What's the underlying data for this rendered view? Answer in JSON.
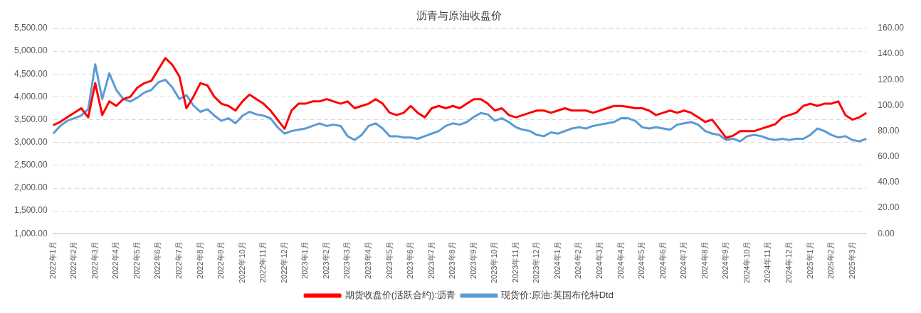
{
  "chart_data": {
    "type": "line",
    "title": "沥青与原油收盘价",
    "categories": [
      "2022年1月",
      null,
      null,
      "2022年2月",
      null,
      null,
      "2022年3月",
      null,
      null,
      "2022年4月",
      null,
      null,
      "2022年5月",
      null,
      null,
      "2022年6月",
      null,
      null,
      "2022年7月",
      null,
      null,
      "2022年8月",
      null,
      null,
      "2022年9月",
      null,
      null,
      "2022年10月",
      null,
      null,
      "2022年11月",
      null,
      null,
      "2022年12月",
      null,
      null,
      "2023年1月",
      null,
      null,
      "2023年2月",
      null,
      null,
      "2023年3月",
      null,
      null,
      "2023年4月",
      null,
      null,
      "2023年5月",
      null,
      null,
      "2023年6月",
      null,
      null,
      "2023年7月",
      null,
      null,
      "2023年8月",
      null,
      null,
      "2023年9月",
      null,
      null,
      "2023年10月",
      null,
      null,
      "2023年11月",
      null,
      null,
      "2023年12月",
      null,
      null,
      "2024年1月",
      null,
      null,
      "2024年2月",
      null,
      null,
      "2024年3月",
      null,
      null,
      "2024年4月",
      null,
      null,
      "2024年5月",
      null,
      null,
      "2024年6月",
      null,
      null,
      "2024年7月",
      null,
      null,
      "2024年8月",
      null,
      null,
      "2024年9月",
      null,
      null,
      "2024年10月",
      null,
      null,
      "2024年11月",
      null,
      null,
      "2024年12月",
      null,
      null,
      "2025年1月",
      null,
      null,
      "2025年2月",
      null,
      null,
      "2025年3月",
      null,
      null
    ],
    "series": [
      {
        "name": "期货收盘价(活跃合约):沥青",
        "color": "#ff0000",
        "values": [
          3380,
          3450,
          3550,
          3650,
          3750,
          3550,
          4300,
          3600,
          3900,
          3800,
          3950,
          4000,
          4200,
          4300,
          4350,
          4600,
          4850,
          4700,
          4450,
          3750,
          4000,
          4300,
          4250,
          4000,
          3850,
          3800,
          3700,
          3900,
          4050,
          3950,
          3850,
          3700,
          3500,
          3300,
          3700,
          3850,
          3850,
          3900,
          3900,
          3950,
          3900,
          3850,
          3900,
          3750,
          3800,
          3850,
          3950,
          3850,
          3650,
          3600,
          3650,
          3800,
          3650,
          3550,
          3750,
          3800,
          3750,
          3800,
          3750,
          3850,
          3950,
          3950,
          3850,
          3700,
          3750,
          3600,
          3550,
          3600,
          3650,
          3700,
          3700,
          3650,
          3700,
          3750,
          3700,
          3700,
          3700,
          3650,
          3700,
          3750,
          3800,
          3800,
          3780,
          3750,
          3750,
          3700,
          3600,
          3650,
          3700,
          3650,
          3700,
          3650,
          3550,
          3450,
          3500,
          3300,
          3100,
          3150,
          3250,
          3250,
          3250,
          3300,
          3350,
          3400,
          3550,
          3600,
          3650,
          3800,
          3850,
          3800,
          3850,
          3850,
          3900,
          3600,
          3500,
          3550,
          3650
        ]
      },
      {
        "name": "现货价:原油:英国布伦特Dtd",
        "color": "#5b9bd5",
        "axis": "y2",
        "values": [
          78,
          84,
          88,
          90,
          92,
          97,
          132,
          105,
          125,
          112,
          105,
          103,
          106,
          110,
          112,
          118,
          120,
          114,
          105,
          108,
          100,
          95,
          97,
          92,
          88,
          90,
          86,
          92,
          95,
          93,
          92,
          90,
          83,
          78,
          80,
          81,
          82,
          84,
          86,
          84,
          85,
          84,
          76,
          73,
          77,
          84,
          86,
          82,
          76,
          76,
          75,
          75,
          74,
          76,
          78,
          80,
          84,
          86,
          85,
          87,
          91,
          94,
          93,
          88,
          90,
          87,
          83,
          81,
          80,
          77,
          76,
          79,
          78,
          80,
          82,
          83,
          82,
          84,
          85,
          86,
          87,
          90,
          90,
          88,
          83,
          82,
          83,
          82,
          81,
          85,
          86,
          87,
          85,
          80,
          78,
          77,
          73,
          74,
          72,
          76,
          77,
          76,
          74,
          73,
          74,
          73,
          74,
          74,
          77,
          82,
          80,
          77,
          75,
          76,
          73,
          72,
          74
        ]
      }
    ],
    "ylim": [
      1000,
      5500
    ],
    "yticks": [
      {
        "value": 1000,
        "label": "1,000.00"
      },
      {
        "value": 1500,
        "label": "1,500.00"
      },
      {
        "value": 2000,
        "label": "2,000.00"
      },
      {
        "value": 2500,
        "label": "2,500.00"
      },
      {
        "value": 3000,
        "label": "3,000.00"
      },
      {
        "value": 3500,
        "label": "3,500.00"
      },
      {
        "value": 4000,
        "label": "4,000.00"
      },
      {
        "value": 4500,
        "label": "4,500.00"
      },
      {
        "value": 5000,
        "label": "5,000.00"
      },
      {
        "value": 5500,
        "label": "5,500.00"
      }
    ],
    "y2lim": [
      0,
      160
    ],
    "y2ticks": [
      {
        "value": 0,
        "label": "0.00"
      },
      {
        "value": 20,
        "label": "20.00"
      },
      {
        "value": 40,
        "label": "40.00"
      },
      {
        "value": 60,
        "label": "60.00"
      },
      {
        "value": 80,
        "label": "80.00"
      },
      {
        "value": 100,
        "label": "100.00"
      },
      {
        "value": 120,
        "label": "120.00"
      },
      {
        "value": 140,
        "label": "140.00"
      },
      {
        "value": 160,
        "label": "160.00"
      }
    ],
    "grid": "y",
    "legend": "bottom",
    "marker": "none",
    "line_style": "solid"
  }
}
